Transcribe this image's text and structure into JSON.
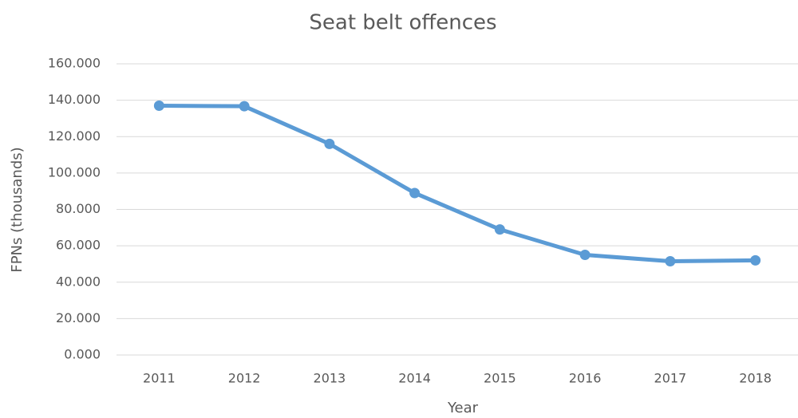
{
  "chart_data": {
    "type": "line",
    "title": "Seat belt offences",
    "x_label": "Year",
    "y_label": "FPNs (thousands)",
    "categories": [
      "2011",
      "2012",
      "2013",
      "2014",
      "2015",
      "2016",
      "2017",
      "2018"
    ],
    "series": [
      {
        "name": "Seat belt offences",
        "color": "#5b9bd5",
        "values": [
          137,
          136.7,
          116,
          89,
          69,
          55,
          51.5,
          52
        ]
      }
    ],
    "ylim": [
      0,
      160
    ],
    "yticks": [
      {
        "value": 0,
        "label": "0.000"
      },
      {
        "value": 20,
        "label": "20.000"
      },
      {
        "value": 40,
        "label": "40.000"
      },
      {
        "value": 60,
        "label": "60.000"
      },
      {
        "value": 80,
        "label": "80.000"
      },
      {
        "value": 100,
        "label": "100.000"
      },
      {
        "value": 120,
        "label": "120.000"
      },
      {
        "value": 140,
        "label": "140.000"
      },
      {
        "value": 160,
        "label": "160.000"
      }
    ],
    "grid": true
  }
}
